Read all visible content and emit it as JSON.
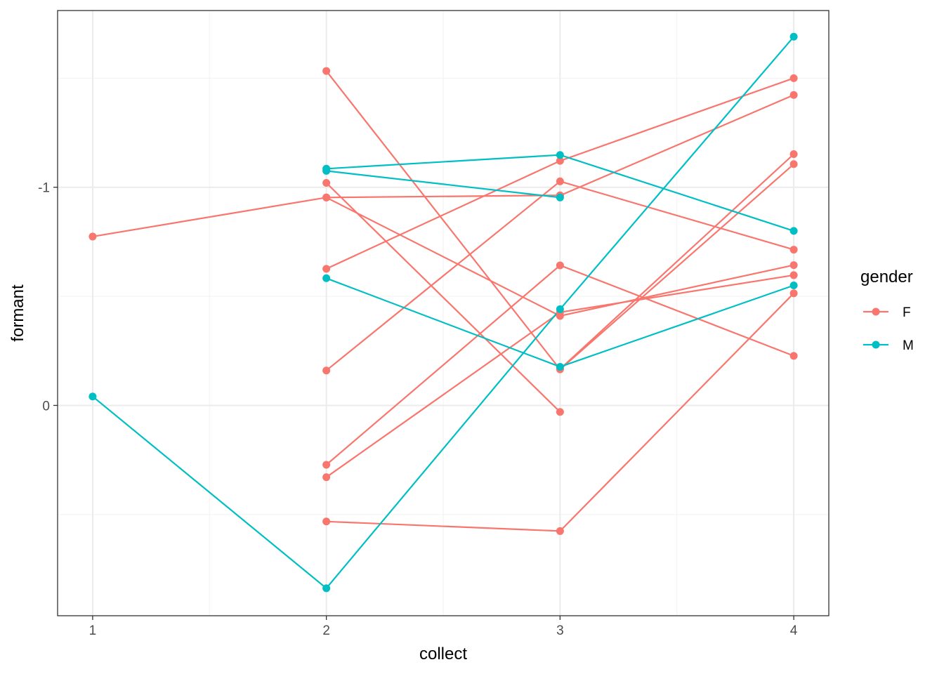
{
  "chart_data": {
    "type": "line",
    "xlabel": "collect",
    "ylabel": "formant",
    "x_ticks": [
      1,
      2,
      3,
      4
    ],
    "x_tick_labels": [
      "1",
      "2",
      "3",
      "4"
    ],
    "y_ticks": [
      0,
      -1
    ],
    "y_tick_labels": [
      "0",
      "-1"
    ],
    "xlim": [
      0.85,
      4.15
    ],
    "ylim": [
      0.964,
      -1.81
    ],
    "y_reversed": true,
    "grid": true,
    "legend": {
      "title": "gender",
      "position": "right",
      "entries": [
        {
          "label": "F",
          "color": "#F8766D"
        },
        {
          "label": "M",
          "color": "#00BFC4"
        }
      ]
    },
    "series": [
      {
        "group": "F",
        "color": "#F8766D",
        "points": [
          [
            1,
            -0.774
          ],
          [
            2,
            -0.953
          ],
          [
            3,
            -0.963
          ]
        ]
      },
      {
        "group": "F",
        "color": "#F8766D",
        "points": [
          [
            2,
            -1.533
          ],
          [
            3,
            -0.165
          ],
          [
            4,
            -1.106
          ]
        ]
      },
      {
        "group": "F",
        "color": "#F8766D",
        "points": [
          [
            2,
            -1.02
          ],
          [
            3,
            0.03
          ]
        ]
      },
      {
        "group": "F",
        "color": "#F8766D",
        "points": [
          [
            2,
            -0.626
          ],
          [
            3,
            -1.121
          ],
          [
            4,
            -1.5
          ]
        ]
      },
      {
        "group": "F",
        "color": "#F8766D",
        "points": [
          [
            2,
            -0.16
          ],
          [
            3,
            -1.027
          ],
          [
            4,
            -0.714
          ]
        ]
      },
      {
        "group": "F",
        "color": "#F8766D",
        "points": [
          [
            2,
            0.272
          ],
          [
            3,
            -0.642
          ],
          [
            4,
            -0.227
          ]
        ]
      },
      {
        "group": "F",
        "color": "#F8766D",
        "points": [
          [
            2,
            0.329
          ],
          [
            3,
            -0.427
          ],
          [
            4,
            -0.597
          ]
        ]
      },
      {
        "group": "F",
        "color": "#F8766D",
        "points": [
          [
            2,
            0.532
          ],
          [
            3,
            0.576
          ],
          [
            4,
            -0.514
          ]
        ]
      },
      {
        "group": "F",
        "color": "#F8766D",
        "points": [
          [
            2,
            -0.953
          ],
          [
            3,
            -0.41
          ],
          [
            4,
            -0.643
          ]
        ]
      },
      {
        "group": "F",
        "color": "#F8766D",
        "points": [
          [
            3,
            -0.962
          ],
          [
            4,
            -1.423
          ]
        ]
      },
      {
        "group": "F",
        "color": "#F8766D",
        "points": [
          [
            3,
            -0.167
          ],
          [
            4,
            -1.152
          ]
        ]
      },
      {
        "group": "M",
        "color": "#00BFC4",
        "points": [
          [
            1,
            -0.041
          ],
          [
            2,
            0.838
          ],
          [
            3,
            -0.441
          ],
          [
            4,
            -1.69
          ]
        ]
      },
      {
        "group": "M",
        "color": "#00BFC4",
        "points": [
          [
            2,
            -1.085
          ],
          [
            3,
            -1.148
          ],
          [
            4,
            -0.8
          ]
        ]
      },
      {
        "group": "M",
        "color": "#00BFC4",
        "points": [
          [
            2,
            -1.075
          ],
          [
            3,
            -0.953
          ]
        ]
      },
      {
        "group": "M",
        "color": "#00BFC4",
        "points": [
          [
            2,
            -0.583
          ],
          [
            3,
            -0.177
          ],
          [
            4,
            -0.55
          ]
        ]
      }
    ]
  }
}
